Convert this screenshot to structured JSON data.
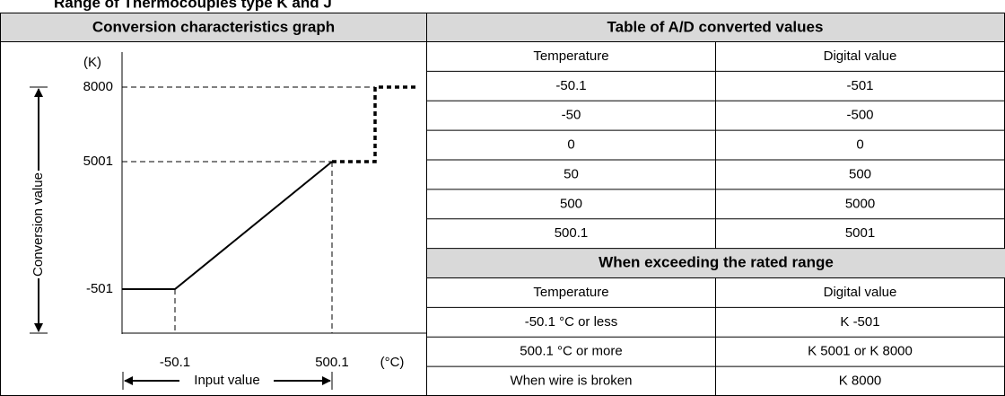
{
  "title": "Range of Thermocouples type K and J",
  "graph": {
    "heading": "Conversion characteristics graph",
    "y_unit": "(K)",
    "y_labels": [
      "8000",
      "5001",
      "-501"
    ],
    "x_labels": [
      "-50.1",
      "500.1"
    ],
    "x_unit": "(°C)",
    "y_axis_title": "Conversion value",
    "x_axis_title": "Input value"
  },
  "table": {
    "heading": "Table of A/D converted values",
    "columns": [
      "Temperature",
      "Digital value"
    ],
    "rows": [
      [
        "-50.1",
        "-501"
      ],
      [
        "-50",
        "-500"
      ],
      [
        "0",
        "0"
      ],
      [
        "50",
        "500"
      ],
      [
        "500",
        "5000"
      ],
      [
        "500.1",
        "5001"
      ]
    ]
  },
  "exceeding": {
    "heading": "When exceeding the rated range",
    "columns": [
      "Temperature",
      "Digital value"
    ],
    "rows": [
      [
        "-50.1 °C or less",
        "K -501"
      ],
      [
        "500.1 °C or more",
        "K 5001 or K 8000"
      ],
      [
        "When wire is broken",
        "K 8000"
      ]
    ]
  }
}
